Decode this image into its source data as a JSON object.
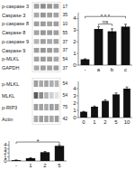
{
  "chart_data": [
    {
      "type": "heatmap",
      "categories": [
        "p-caspase 3",
        "Caspase 3",
        "p-caspase 8",
        "Caspase 8",
        "p-caspase 9",
        "Caspase 9",
        "p-MLKL",
        "GAPDH"
      ],
      "annotations": [
        "17",
        "35",
        "10",
        "55",
        "37",
        "37",
        "54",
        "37"
      ],
      "cells": [
        [
          0.5,
          0.6,
          0.55,
          0.52
        ],
        [
          0.45,
          0.55,
          0.5,
          0.48
        ],
        [
          0.5,
          0.52,
          0.48,
          0.5
        ],
        [
          0.48,
          0.55,
          0.52,
          0.5
        ],
        [
          0.4,
          0.5,
          0.45,
          0.48
        ],
        [
          0.5,
          0.55,
          0.52,
          0.48
        ],
        [
          0.48,
          0.52,
          0.5,
          0.45
        ],
        [
          0.45,
          0.5,
          0.48,
          0.5
        ]
      ]
    },
    {
      "type": "bar",
      "categories": [
        "-",
        "a",
        "b",
        "c"
      ],
      "values": [
        0.5,
        3.1,
        2.9,
        3.3
      ],
      "errors": [
        0.04,
        0.18,
        0.22,
        0.2
      ],
      "color": "#111111",
      "ylim": [
        0,
        4.5
      ],
      "yticks": [
        0,
        1,
        2,
        3,
        4
      ],
      "annotations": [
        {
          "text": "* * *",
          "from": "-",
          "to": "c"
        },
        {
          "text": "ns",
          "from": "a",
          "to": "b"
        }
      ]
    },
    {
      "type": "heatmap",
      "categories": [
        "p-MLKL",
        "MLKL",
        "p-RIP3",
        "Actin"
      ],
      "annotations": [
        "54",
        "54",
        "75",
        "42"
      ],
      "cells": [
        [
          0.5,
          0.45,
          0.48,
          0.42,
          0.4
        ],
        [
          0.85,
          0.6,
          0.4,
          0.25,
          0.15
        ],
        [
          0.5,
          0.48,
          0.45,
          0.5,
          0.48
        ],
        [
          0.45,
          0.5,
          0.48,
          0.45,
          0.5
        ]
      ]
    },
    {
      "type": "bar",
      "categories": [
        "0",
        "1",
        "2",
        "5",
        "10"
      ],
      "values": [
        0.8,
        1.5,
        2.3,
        3.2,
        4.0
      ],
      "errors": [
        0.05,
        0.1,
        0.15,
        0.2,
        0.22
      ],
      "color": "#111111",
      "ylim": [
        0,
        5
      ],
      "yticks": [
        0,
        1,
        2,
        3,
        4
      ]
    },
    {
      "type": "bar",
      "categories": [
        "-",
        "1",
        "2",
        "5"
      ],
      "values": [
        0.2,
        0.7,
        2.2,
        3.8
      ],
      "errors": [
        0.03,
        0.08,
        0.18,
        0.28
      ],
      "color": "#111111",
      "ylim": [
        0,
        5
      ],
      "yticks": [
        0,
        1,
        2,
        3,
        4
      ],
      "annotations": [
        {
          "text": "*",
          "from": "-",
          "to": "5"
        }
      ]
    }
  ]
}
